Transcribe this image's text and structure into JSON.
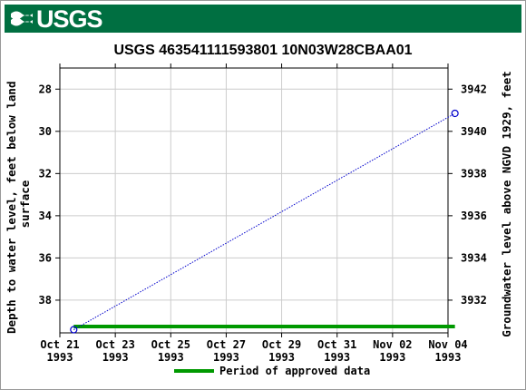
{
  "header": {
    "logo_text": "USGS",
    "logo_icon": "usgs-wave-icon",
    "brand_color": "#006f41"
  },
  "chart_data": {
    "type": "line",
    "title": "USGS 463541111593801 10N03W28CBAA01",
    "ylabel_left": [
      "Depth to water level, feet below land",
      "surface"
    ],
    "ylabel_right": "Groundwater level above NGVD 1929, feet",
    "x_ticks": [
      [
        "Oct 21",
        "1993"
      ],
      [
        "Oct 23",
        "1993"
      ],
      [
        "Oct 25",
        "1993"
      ],
      [
        "Oct 27",
        "1993"
      ],
      [
        "Oct 29",
        "1993"
      ],
      [
        "Oct 31",
        "1993"
      ],
      [
        "Nov 02",
        "1993"
      ],
      [
        "Nov 04",
        "1993"
      ]
    ],
    "xlim": [
      "1993-10-21",
      "1993-11-04"
    ],
    "ylim_left": [
      39.55,
      27.0
    ],
    "yticks_left": [
      28,
      30,
      32,
      34,
      36,
      38
    ],
    "yticks_right": [
      3942,
      3940,
      3938,
      3936,
      3934,
      3932
    ],
    "series": [
      {
        "color": "#0000cc",
        "style": "dotted",
        "marker": "circle",
        "points": [
          {
            "x": "1993-10-21T12:00",
            "y": 39.4
          },
          {
            "x": "1993-11-04T06:00",
            "y": 29.15
          }
        ]
      }
    ],
    "approved_period": {
      "start": "1993-10-21T12:00",
      "end": "1993-11-04T06:00",
      "color": "#009900"
    },
    "legend": {
      "label": "Period of approved data",
      "position": "bottom"
    },
    "grid": true
  }
}
